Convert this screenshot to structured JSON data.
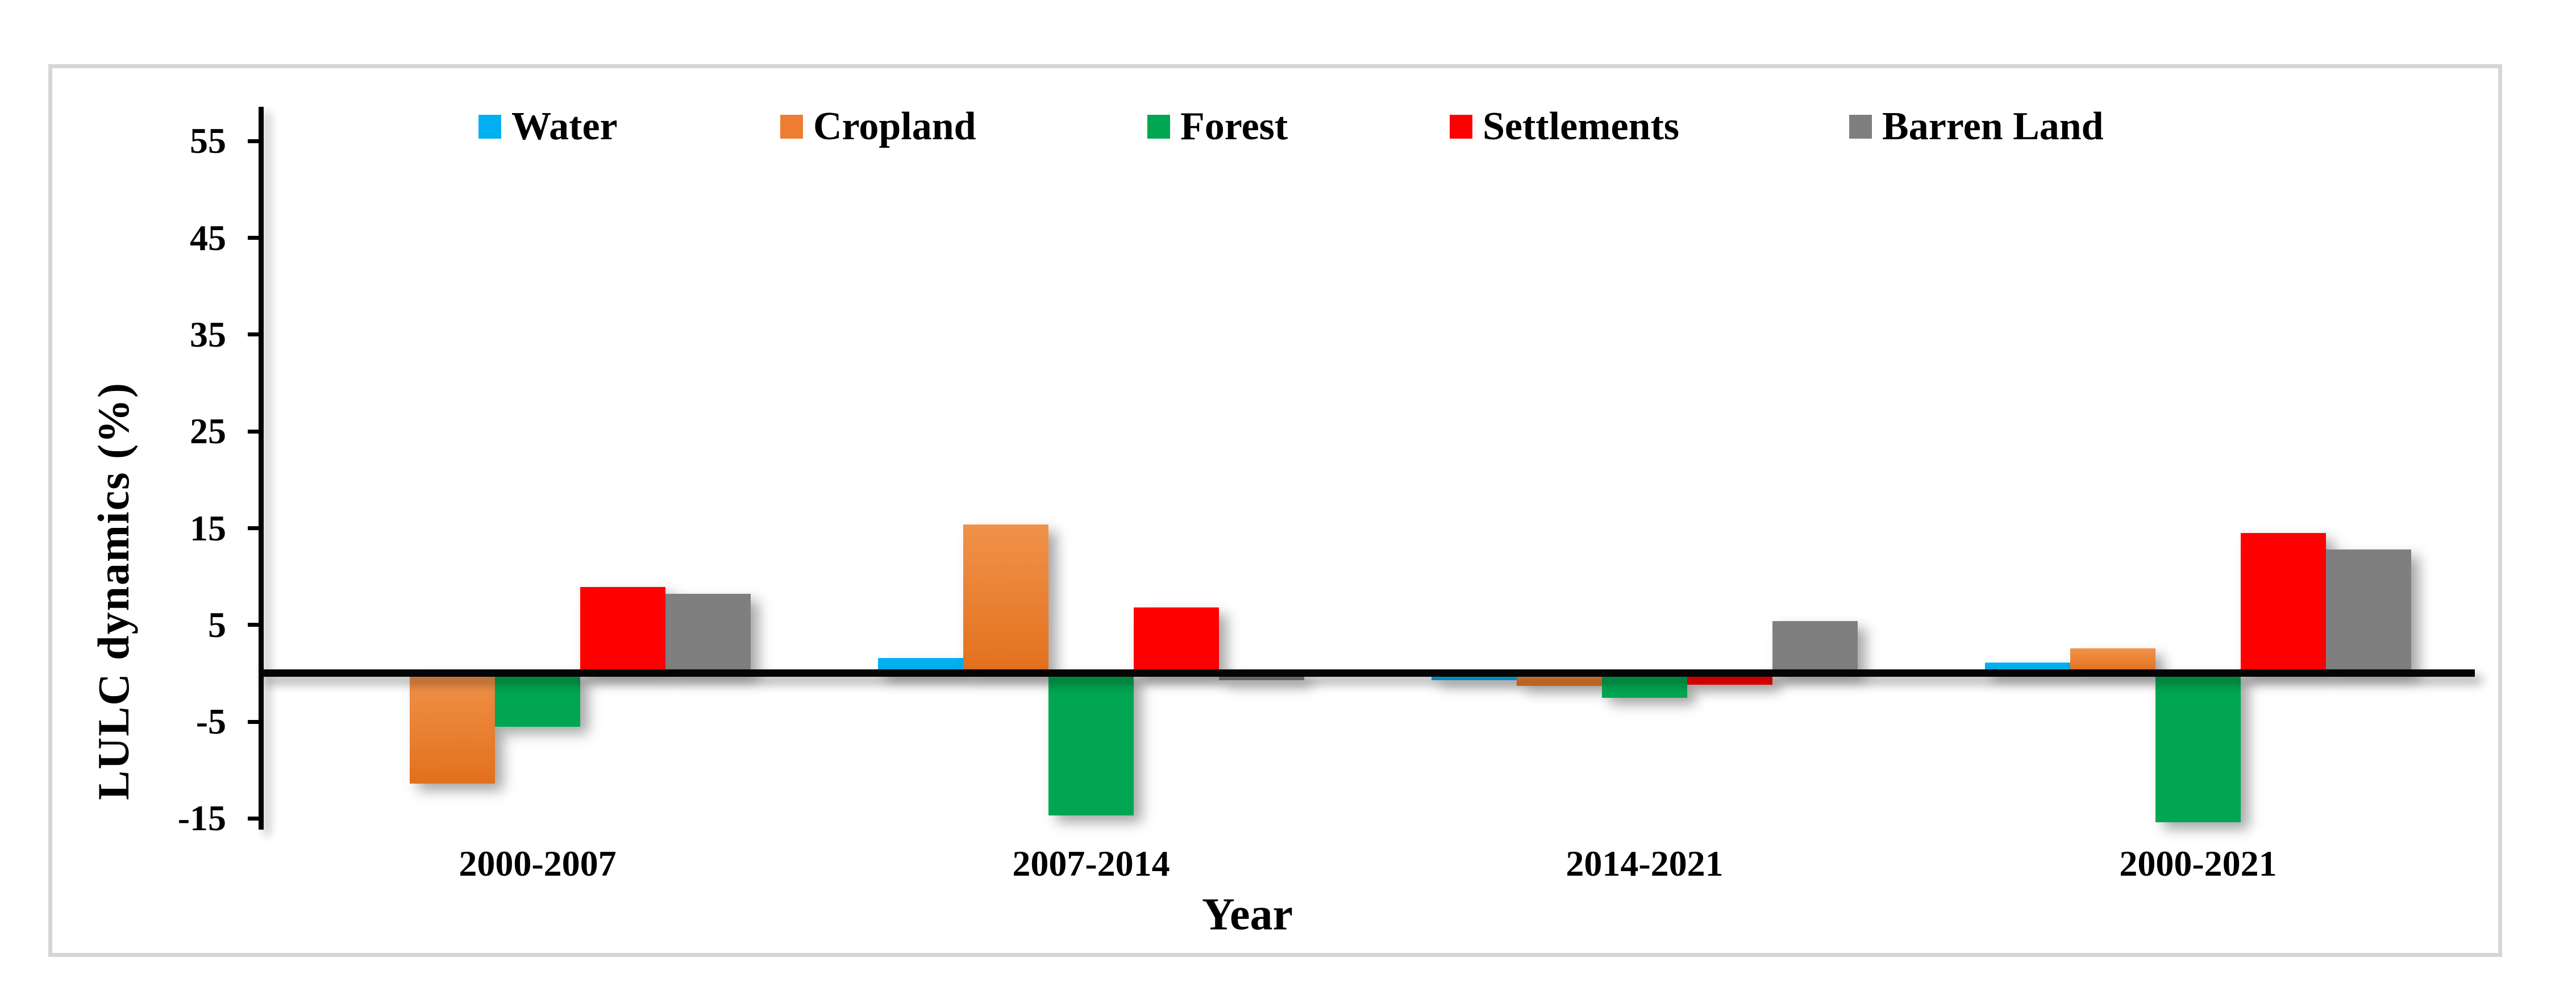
{
  "figure": {
    "border_color": "#d6d6d6",
    "background_color": "#ffffff",
    "axis_color": "#000000"
  },
  "chart_data": {
    "type": "bar",
    "title": "",
    "xlabel": "Year",
    "ylabel": "LULC dynamics  (%)",
    "categories": [
      "2000-2007",
      "2007-2014",
      "2014-2021",
      "2000-2021"
    ],
    "series": [
      {
        "name": "Water",
        "color": "#00B0F0",
        "values": [
          0,
          1.6,
          -0.7,
          1.1
        ]
      },
      {
        "name": "Cropland",
        "color": "#ED7D31",
        "gradient_top": "#F0924A",
        "gradient_bottom": "#E2701C",
        "values": [
          -11.4,
          15.4,
          -1.3,
          2.6
        ]
      },
      {
        "name": "Forest",
        "color": "#00A651",
        "values": [
          -5.5,
          -14.7,
          -2.5,
          -15.4
        ]
      },
      {
        "name": "Settlements",
        "color": "#FF0000",
        "values": [
          8.9,
          6.8,
          -1.2,
          14.5
        ]
      },
      {
        "name": "Barren Land",
        "color": "#7F7F7F",
        "values": [
          8.2,
          -0.7,
          5.4,
          12.8
        ]
      }
    ],
    "y_ticks": [
      55,
      45,
      35,
      25,
      15,
      5,
      -5,
      -15
    ],
    "ylim": [
      -16.1,
      58.5
    ],
    "grid": false,
    "legend_position": "top",
    "baseline_value": 0
  }
}
